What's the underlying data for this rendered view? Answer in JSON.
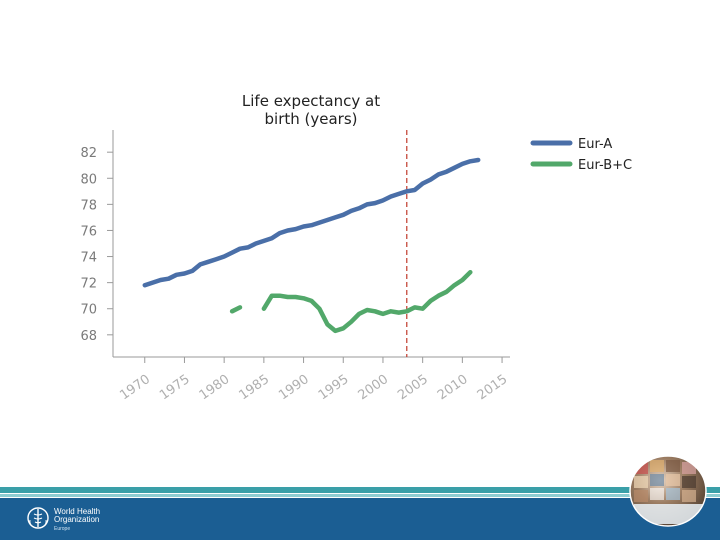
{
  "title_lines": [
    "Life expectancy at",
    "birth (years)"
  ],
  "org": {
    "name_line1": "World Health",
    "name_line2": "Organization",
    "region": "Europe"
  },
  "colors": {
    "eur_a": "#4a6fa8",
    "eur_bc": "#52a86a",
    "reference_line": "#c0392b",
    "axis": "#9a9a9a",
    "tick_label": "#7a7a7a"
  },
  "chart_data": {
    "type": "line",
    "title": "Life expectancy at birth (years)",
    "xlabel": "",
    "ylabel": "",
    "xlim": [
      1966,
      2016
    ],
    "ylim": [
      66.3,
      83.7
    ],
    "xticks": [
      1970,
      1975,
      1980,
      1985,
      1990,
      1995,
      2000,
      2005,
      2010,
      2015
    ],
    "yticks": [
      68,
      70,
      72,
      74,
      76,
      78,
      80,
      82
    ],
    "reference_x": 2003,
    "legend": "right",
    "series": [
      {
        "name": "Eur-A",
        "points": [
          [
            1970,
            71.8
          ],
          [
            1971,
            72.0
          ],
          [
            1972,
            72.2
          ],
          [
            1973,
            72.3
          ],
          [
            1974,
            72.6
          ],
          [
            1975,
            72.7
          ],
          [
            1976,
            72.9
          ],
          [
            1977,
            73.4
          ],
          [
            1978,
            73.6
          ],
          [
            1979,
            73.8
          ],
          [
            1980,
            74.0
          ],
          [
            1981,
            74.3
          ],
          [
            1982,
            74.6
          ],
          [
            1983,
            74.7
          ],
          [
            1984,
            75.0
          ],
          [
            1985,
            75.2
          ],
          [
            1986,
            75.4
          ],
          [
            1987,
            75.8
          ],
          [
            1988,
            76.0
          ],
          [
            1989,
            76.1
          ],
          [
            1990,
            76.3
          ],
          [
            1991,
            76.4
          ],
          [
            1992,
            76.6
          ],
          [
            1993,
            76.8
          ],
          [
            1994,
            77.0
          ],
          [
            1995,
            77.2
          ],
          [
            1996,
            77.5
          ],
          [
            1997,
            77.7
          ],
          [
            1998,
            78.0
          ],
          [
            1999,
            78.1
          ],
          [
            2000,
            78.3
          ],
          [
            2001,
            78.6
          ],
          [
            2002,
            78.8
          ],
          [
            2003,
            79.0
          ],
          [
            2004,
            79.1
          ],
          [
            2005,
            79.6
          ],
          [
            2006,
            79.9
          ],
          [
            2007,
            80.3
          ],
          [
            2008,
            80.5
          ],
          [
            2009,
            80.8
          ],
          [
            2010,
            81.1
          ],
          [
            2011,
            81.3
          ],
          [
            2012,
            81.4
          ]
        ]
      },
      {
        "name": "Eur-B+C",
        "segments": [
          [
            [
              1981,
              69.8
            ],
            [
              1982,
              70.1
            ]
          ],
          [
            [
              1985,
              70.0
            ],
            [
              1986,
              71.0
            ],
            [
              1987,
              71.0
            ],
            [
              1988,
              70.9
            ],
            [
              1989,
              70.9
            ],
            [
              1990,
              70.8
            ],
            [
              1991,
              70.6
            ],
            [
              1992,
              70.0
            ],
            [
              1993,
              68.8
            ],
            [
              1994,
              68.3
            ],
            [
              1995,
              68.5
            ],
            [
              1996,
              69.0
            ],
            [
              1997,
              69.6
            ],
            [
              1998,
              69.9
            ],
            [
              1999,
              69.8
            ],
            [
              2000,
              69.6
            ],
            [
              2001,
              69.8
            ],
            [
              2002,
              69.7
            ],
            [
              2003,
              69.8
            ],
            [
              2004,
              70.1
            ],
            [
              2005,
              70.0
            ],
            [
              2006,
              70.6
            ],
            [
              2007,
              71.0
            ],
            [
              2008,
              71.3
            ],
            [
              2009,
              71.8
            ],
            [
              2010,
              72.2
            ],
            [
              2011,
              72.8
            ]
          ]
        ]
      }
    ]
  }
}
